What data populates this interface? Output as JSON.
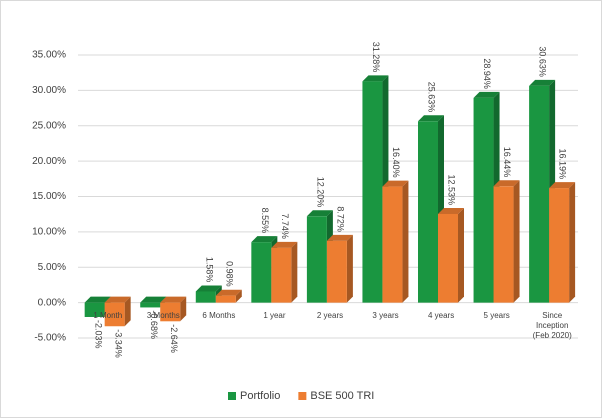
{
  "chart_data": {
    "type": "bar3d",
    "categories": [
      "1 Month",
      "3 Months",
      "6 Months",
      "1 year",
      "2 years",
      "3 years",
      "4 years",
      "5 years",
      "Since Inception (Feb 2020)"
    ],
    "series": [
      {
        "name": "Portfolio",
        "color": "#1a9641",
        "values": [
          -2.03,
          -0.68,
          1.58,
          8.55,
          12.2,
          31.28,
          25.63,
          28.94,
          30.63
        ],
        "value_labels": [
          "-2.03%",
          "-0.68%",
          "1.58%",
          "8.55%",
          "12.20%",
          "31.28%",
          "25.63%",
          "28.94%",
          "30.63%"
        ]
      },
      {
        "name": "BSE 500 TRI",
        "color": "#ed7d31",
        "values": [
          -3.34,
          -2.64,
          0.98,
          7.74,
          8.72,
          16.4,
          12.53,
          16.44,
          16.19
        ],
        "value_labels": [
          "-3.34%",
          "-2.64%",
          "0.98%",
          "7.74%",
          "8.72%",
          "16.40%",
          "12.53%",
          "16.44%",
          "16.19%"
        ]
      }
    ],
    "ylim": [
      -5,
      35
    ],
    "yticks": [
      {
        "value": -5,
        "label": "-5.00%"
      },
      {
        "value": 0,
        "label": "0.00%"
      },
      {
        "value": 5,
        "label": "5.00%"
      },
      {
        "value": 10,
        "label": "10.00%"
      },
      {
        "value": 15,
        "label": "15.00%"
      },
      {
        "value": 20,
        "label": "20.00%"
      },
      {
        "value": 25,
        "label": "25.00%"
      },
      {
        "value": 30,
        "label": "30.00%"
      },
      {
        "value": 35,
        "label": "35.00%"
      }
    ],
    "grid": true,
    "legend": "bottom"
  }
}
